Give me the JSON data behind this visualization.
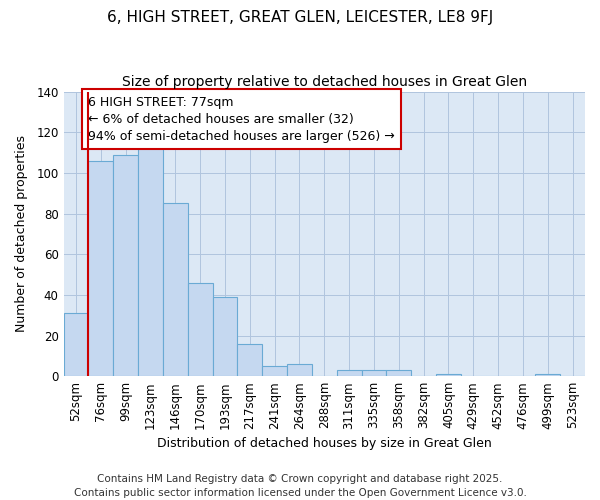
{
  "title": "6, HIGH STREET, GREAT GLEN, LEICESTER, LE8 9FJ",
  "subtitle": "Size of property relative to detached houses in Great Glen",
  "xlabel": "Distribution of detached houses by size in Great Glen",
  "ylabel": "Number of detached properties",
  "categories": [
    "52sqm",
    "76sqm",
    "99sqm",
    "123sqm",
    "146sqm",
    "170sqm",
    "193sqm",
    "217sqm",
    "241sqm",
    "264sqm",
    "288sqm",
    "311sqm",
    "335sqm",
    "358sqm",
    "382sqm",
    "405sqm",
    "429sqm",
    "452sqm",
    "476sqm",
    "499sqm",
    "523sqm"
  ],
  "values": [
    31,
    106,
    109,
    115,
    85,
    46,
    39,
    16,
    5,
    6,
    0,
    3,
    3,
    3,
    0,
    1,
    0,
    0,
    0,
    1,
    0
  ],
  "bar_color": "#c5d8f0",
  "bar_edge_color": "#6aaad4",
  "grid_color": "#b0c4de",
  "plot_bg_color": "#dce8f5",
  "fig_bg_color": "#ffffff",
  "vline_color": "#cc0000",
  "annotation_text": "6 HIGH STREET: 77sqm\n← 6% of detached houses are smaller (32)\n94% of semi-detached houses are larger (526) →",
  "annotation_box_color": "#ffffff",
  "annotation_border_color": "#cc0000",
  "ylim": [
    0,
    140
  ],
  "yticks": [
    0,
    20,
    40,
    60,
    80,
    100,
    120,
    140
  ],
  "footer": "Contains HM Land Registry data © Crown copyright and database right 2025.\nContains public sector information licensed under the Open Government Licence v3.0.",
  "title_fontsize": 11,
  "subtitle_fontsize": 10,
  "xlabel_fontsize": 9,
  "ylabel_fontsize": 9,
  "tick_fontsize": 8.5,
  "annotation_fontsize": 9,
  "footer_fontsize": 7.5
}
